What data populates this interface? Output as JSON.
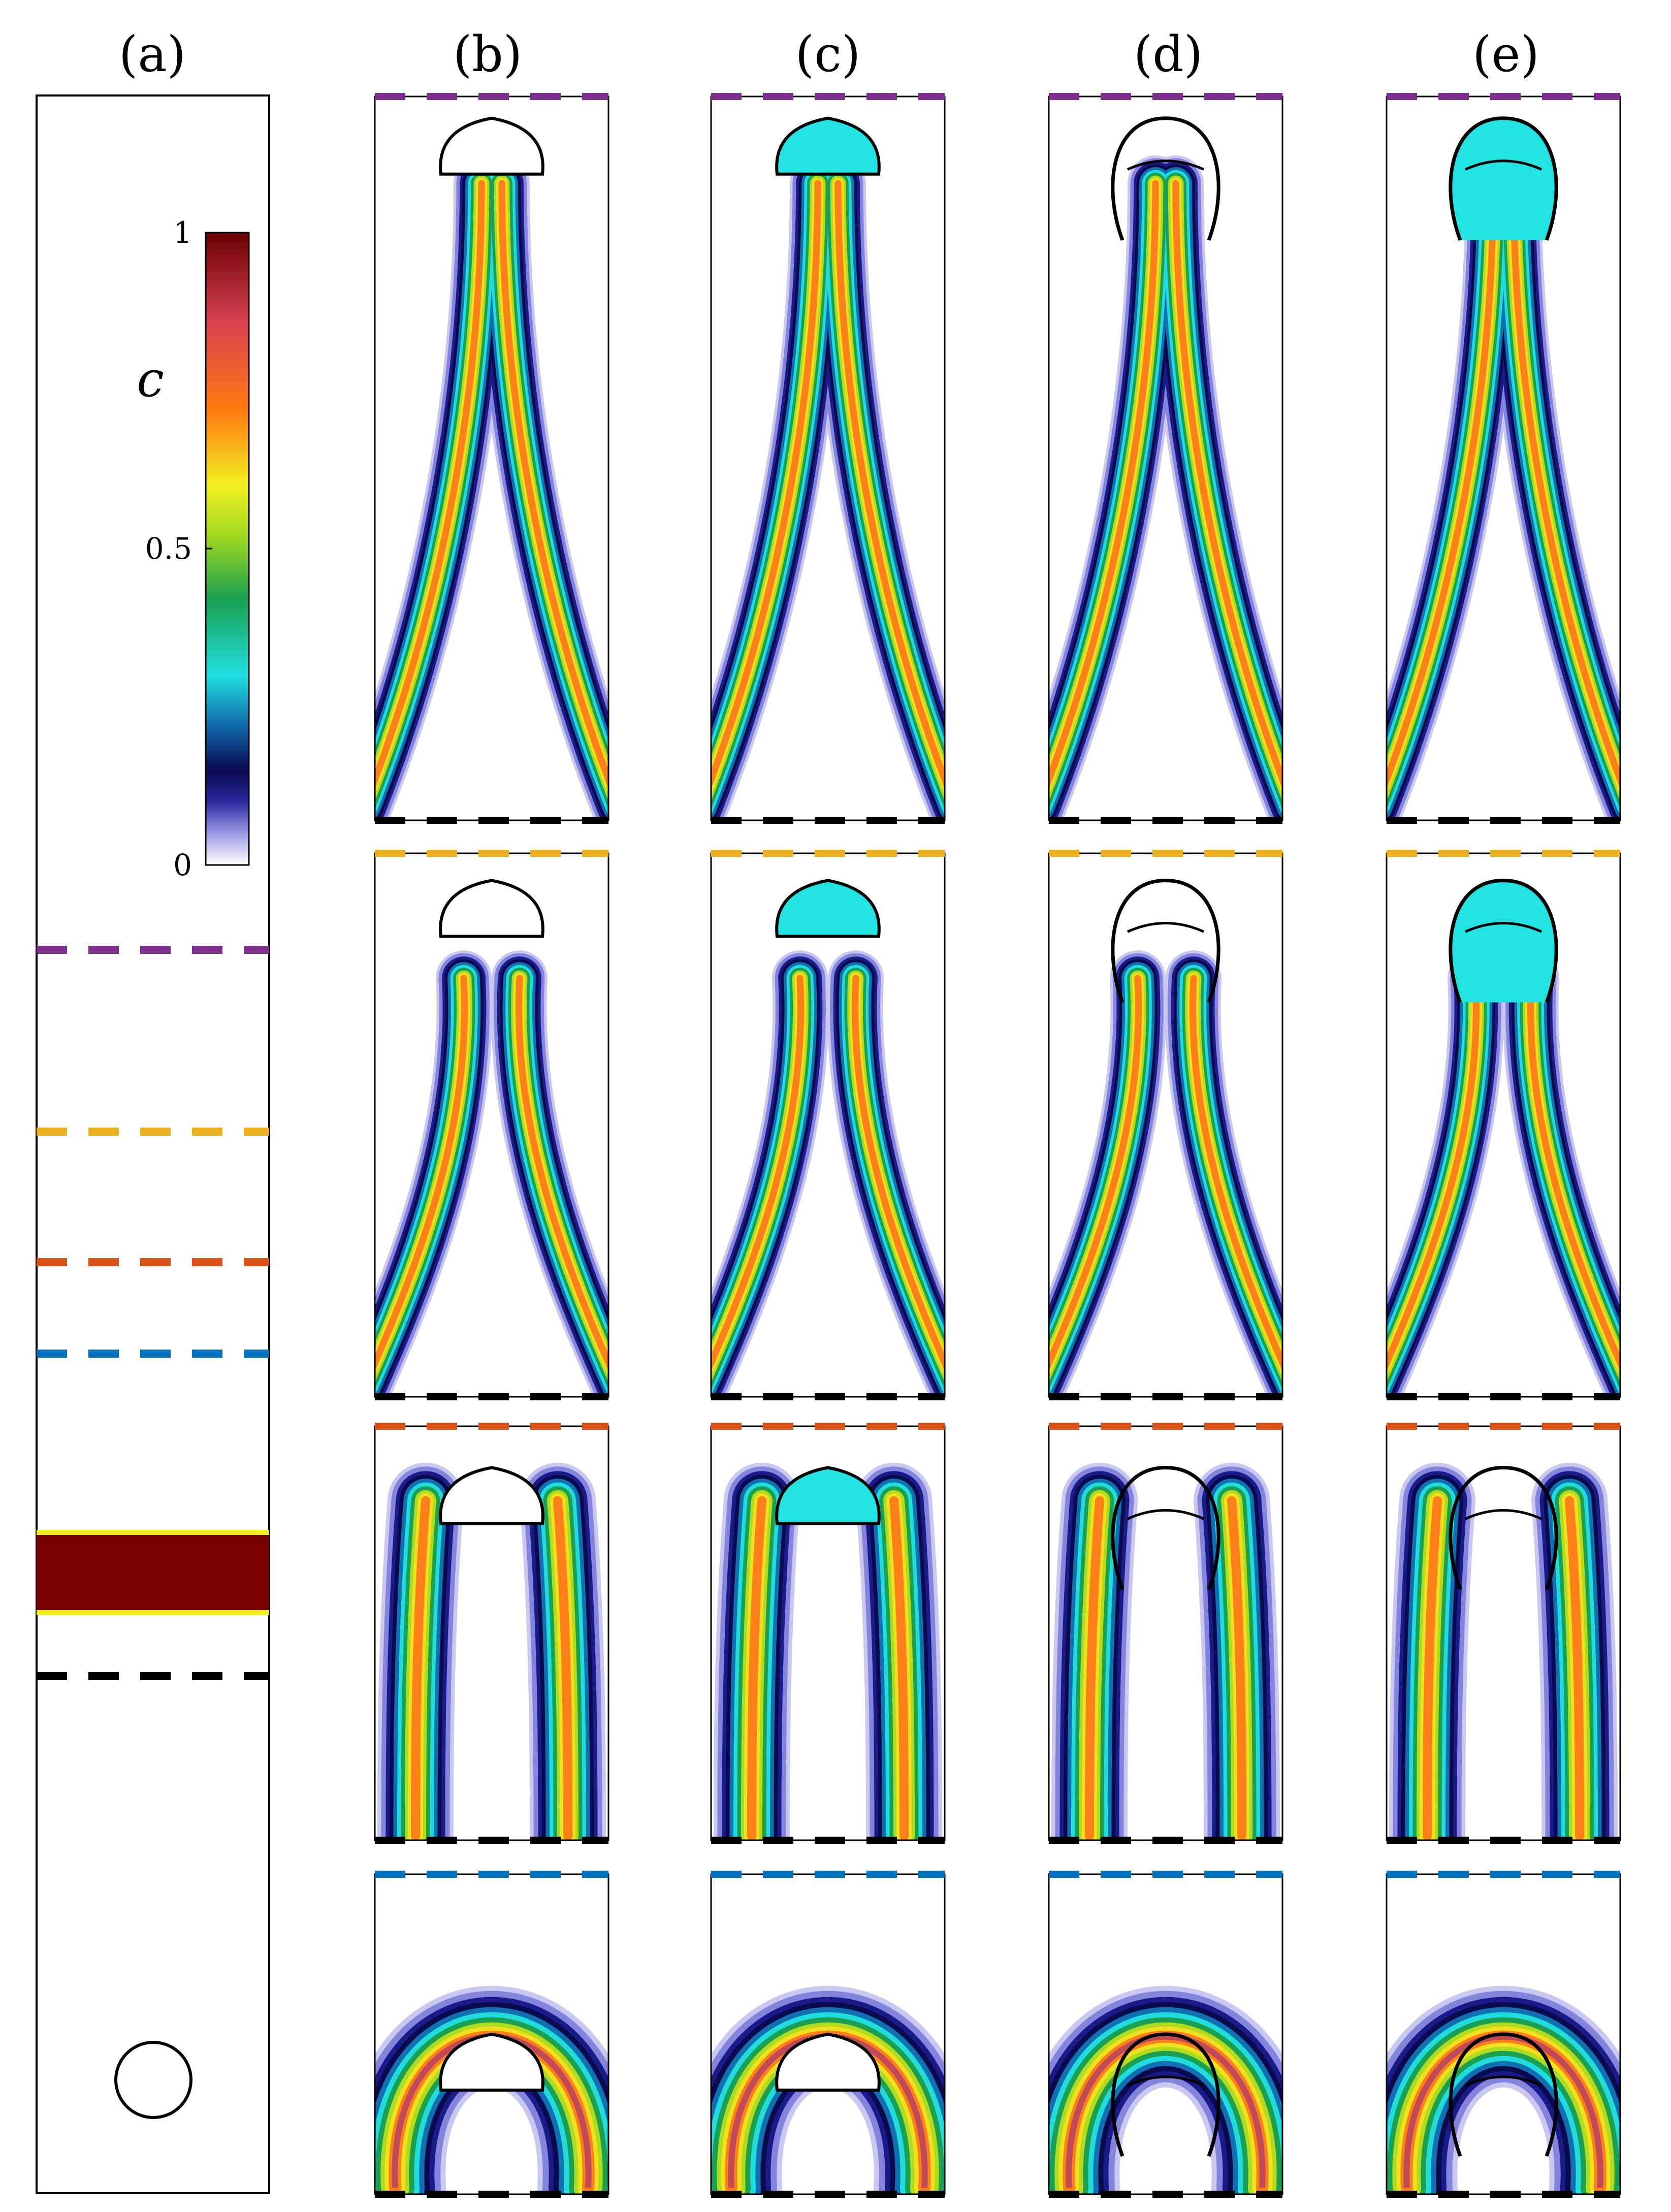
{
  "panel_labels": [
    "(a)",
    "(b)",
    "(c)",
    "(d)",
    "(e)"
  ],
  "colorbar": {
    "variable": "c",
    "ticks": [
      "1",
      "0.5",
      "0"
    ],
    "tick_values": [
      1,
      0.5,
      0
    ],
    "stops": [
      "#ffffff",
      "#9a9ae6",
      "#2a2a9e",
      "#0a0a52",
      "#1068a8",
      "#20e0e0",
      "#1aa050",
      "#a0d820",
      "#f2f020",
      "#ff7a10",
      "#d84050",
      "#6a0000"
    ]
  },
  "slice_colors": {
    "purple": "#7e2f8e",
    "yellow": "#edb120",
    "orange": "#d95319",
    "blue": "#0072bd",
    "black": "#000000"
  },
  "band_color": "#770000"
}
